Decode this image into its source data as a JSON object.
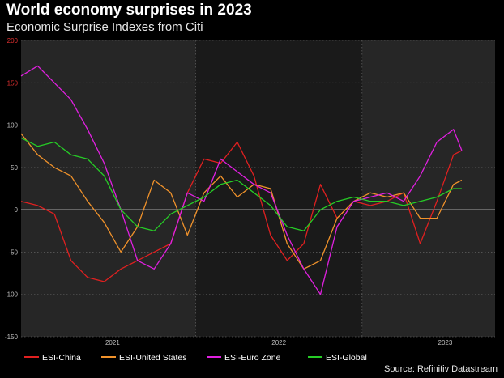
{
  "title": "World economy surprises in 2023",
  "subtitle": "Economic Surprise Indexes from Citi",
  "source": "Source: Refinitiv Datastream",
  "chart_data": {
    "type": "line",
    "title": "World economy surprises in 2023",
    "subtitle": "Economic Surprise Indexes from Citi",
    "xlabel": "",
    "ylabel": "",
    "xlim": [
      2020.45,
      2023.3
    ],
    "ylim": [
      -150,
      200
    ],
    "yticks": [
      -150,
      -100,
      -50,
      0,
      50,
      100,
      150,
      200
    ],
    "xticks": [
      {
        "label": "2021",
        "x": 2021.0
      },
      {
        "label": "2022",
        "x": 2022.0
      },
      {
        "label": "2023",
        "x": 2023.0
      }
    ],
    "year_boundaries": [
      2021.5,
      2022.5
    ],
    "grid": true,
    "zero_line": true,
    "legend_position": "bottom",
    "colors": {
      "background": "#000000",
      "plot_light": "#262626",
      "plot_dark": "#1a1a1a",
      "grid": "#5a5a5a",
      "zero": "#cfcfcf",
      "axis_text": "#bfbfbf",
      "axis_text_red": "#e03030"
    },
    "x": [
      2020.45,
      2020.55,
      2020.65,
      2020.75,
      2020.85,
      2020.95,
      2021.05,
      2021.15,
      2021.25,
      2021.35,
      2021.45,
      2021.55,
      2021.65,
      2021.75,
      2021.85,
      2021.95,
      2022.05,
      2022.15,
      2022.25,
      2022.35,
      2022.45,
      2022.55,
      2022.65,
      2022.75,
      2022.85,
      2022.95,
      2023.05,
      2023.1
    ],
    "series": [
      {
        "name": "ESI-China",
        "color": "#e02020",
        "values": [
          10,
          5,
          -5,
          -60,
          -80,
          -85,
          -70,
          -60,
          -50,
          -40,
          20,
          60,
          55,
          80,
          40,
          -30,
          -60,
          -40,
          30,
          -10,
          10,
          5,
          10,
          20,
          -40,
          10,
          65,
          70
        ]
      },
      {
        "name": "ESI-United States",
        "color": "#f0922b",
        "values": [
          90,
          65,
          50,
          40,
          10,
          -15,
          -50,
          -20,
          35,
          20,
          -30,
          20,
          40,
          15,
          30,
          25,
          -40,
          -70,
          -60,
          -10,
          10,
          20,
          15,
          20,
          -10,
          -10,
          30,
          35
        ]
      },
      {
        "name": "ESI-Euro Zone",
        "color": "#e020e0",
        "values": [
          158,
          170,
          150,
          130,
          95,
          55,
          0,
          -60,
          -70,
          -40,
          20,
          10,
          60,
          45,
          30,
          20,
          -30,
          -70,
          -100,
          -20,
          10,
          15,
          20,
          10,
          40,
          80,
          95,
          70
        ]
      },
      {
        "name": "ESI-Global",
        "color": "#26cc26",
        "values": [
          85,
          75,
          80,
          65,
          60,
          40,
          0,
          -20,
          -25,
          -5,
          5,
          15,
          30,
          35,
          20,
          5,
          -20,
          -25,
          0,
          10,
          15,
          10,
          10,
          5,
          10,
          15,
          25,
          25
        ]
      }
    ]
  }
}
